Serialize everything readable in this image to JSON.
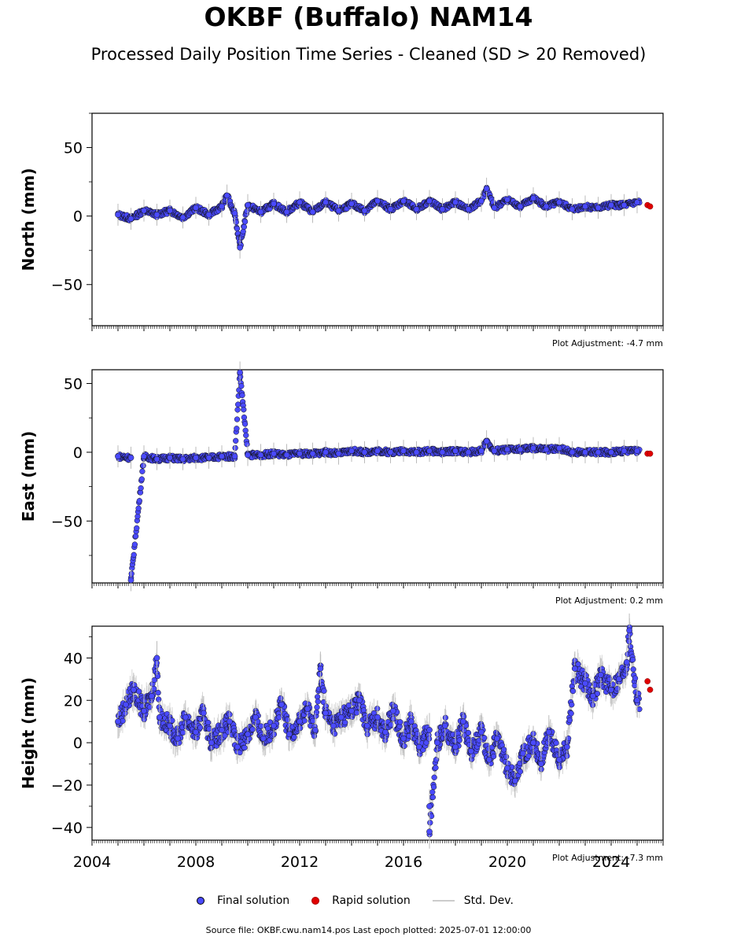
{
  "title": "OKBF (Buffalo) NAM14",
  "subtitle": "Processed Daily Position Time Series - Cleaned (SD > 20 Removed)",
  "legend": {
    "final": "Final solution",
    "rapid": "Rapid solution",
    "sd": "Std. Dev."
  },
  "footer": "Source file: OKBF.cwu.nam14.pos  Last epoch plotted: 2025-07-01 12:00:00",
  "colors": {
    "final": "#4a4aff",
    "rapid": "#e00000",
    "sd": "#bbbbbb"
  },
  "chart_data": [
    {
      "type": "scatter",
      "ylabel": "North (mm)",
      "adjustment": "Plot Adjustment: -4.7 mm",
      "xlim": [
        2004,
        2026
      ],
      "ylim": [
        -80,
        75
      ],
      "yticks": [
        -50,
        0,
        50
      ],
      "show_x_labels": false,
      "series": [
        {
          "name": "Final solution",
          "x": [
            2005.0,
            2005.5,
            2006.0,
            2006.5,
            2007.0,
            2007.5,
            2008.0,
            2008.5,
            2009.0,
            2009.5,
            2010.0,
            2010.5,
            2011.0,
            2011.5,
            2012.0,
            2012.5,
            2013.0,
            2013.5,
            2014.0,
            2014.5,
            2015.0,
            2015.5,
            2016.0,
            2016.5,
            2017.0,
            2017.5,
            2018.0,
            2018.5,
            2019.0,
            2019.5,
            2020.0,
            2020.5,
            2021.0,
            2021.5,
            2022.0,
            2022.5,
            2023.0,
            2023.5,
            2024.0,
            2024.5,
            2025.0,
            2009.2,
            2009.7,
            2019.2
          ],
          "y": [
            1,
            -2,
            4,
            1,
            4,
            -1,
            6,
            1,
            7,
            2,
            8,
            3,
            9,
            3,
            10,
            3,
            10,
            4,
            9,
            4,
            11,
            5,
            11,
            5,
            11,
            5,
            10,
            5,
            11,
            6,
            12,
            7,
            13,
            7,
            10,
            5,
            7,
            6,
            8,
            8,
            10,
            15,
            -23,
            20
          ]
        },
        {
          "name": "Rapid solution",
          "x": [
            2025.4,
            2025.5
          ],
          "y": [
            8,
            7
          ]
        }
      ]
    },
    {
      "type": "scatter",
      "ylabel": "East (mm)",
      "adjustment": "Plot Adjustment: 0.2 mm",
      "xlim": [
        2004,
        2026
      ],
      "ylim": [
        -95,
        60
      ],
      "yticks": [
        -50,
        0,
        50
      ],
      "show_x_labels": false,
      "series": [
        {
          "name": "Final solution",
          "x": [
            2005.0,
            2005.5,
            2006.0,
            2006.5,
            2007.0,
            2007.5,
            2008.0,
            2008.5,
            2009.0,
            2009.5,
            2010.0,
            2010.5,
            2011.0,
            2011.5,
            2012.0,
            2012.5,
            2013.0,
            2013.5,
            2014.0,
            2014.5,
            2015.0,
            2015.5,
            2016.0,
            2016.5,
            2017.0,
            2017.5,
            2018.0,
            2018.5,
            2019.0,
            2019.5,
            2020.0,
            2020.5,
            2021.0,
            2021.5,
            2022.0,
            2022.5,
            2023.0,
            2023.5,
            2024.0,
            2024.5,
            2025.0,
            2009.7,
            2005.5,
            2019.2
          ],
          "y": [
            -3,
            -4,
            -3,
            -5,
            -4,
            -5,
            -4,
            -4,
            -3,
            -3,
            -2,
            -2,
            -1,
            -2,
            -1,
            -1,
            0,
            -1,
            1,
            0,
            1,
            0,
            1,
            0,
            1,
            0,
            1,
            0,
            1,
            1,
            2,
            2,
            3,
            2,
            3,
            0,
            0,
            0,
            0,
            1,
            1,
            58,
            -93,
            8
          ]
        },
        {
          "name": "Rapid solution",
          "x": [
            2025.4,
            2025.5
          ],
          "y": [
            -1,
            -1
          ]
        }
      ]
    },
    {
      "type": "scatter",
      "ylabel": "Height (mm)",
      "adjustment": "Plot Adjustment: -7.3 mm",
      "xlim": [
        2004,
        2026
      ],
      "ylim": [
        -46,
        55
      ],
      "yticks": [
        -40,
        -20,
        0,
        20,
        40
      ],
      "xticks": [
        2004,
        2008,
        2012,
        2016,
        2020,
        2024
      ],
      "show_x_labels": true,
      "series": [
        {
          "name": "Final solution",
          "x": [
            2005.0,
            2005.3,
            2005.6,
            2006.0,
            2006.3,
            2006.6,
            2007.0,
            2007.3,
            2007.6,
            2008.0,
            2008.3,
            2008.6,
            2009.0,
            2009.3,
            2009.6,
            2010.0,
            2010.3,
            2010.6,
            2011.0,
            2011.3,
            2011.6,
            2012.0,
            2012.3,
            2012.6,
            2013.0,
            2013.3,
            2013.6,
            2014.0,
            2014.3,
            2014.6,
            2015.0,
            2015.3,
            2015.6,
            2016.0,
            2016.3,
            2016.6,
            2017.0,
            2017.3,
            2017.6,
            2018.0,
            2018.3,
            2018.6,
            2019.0,
            2019.3,
            2019.6,
            2020.0,
            2020.3,
            2020.6,
            2021.0,
            2021.3,
            2021.6,
            2022.0,
            2022.3,
            2022.6,
            2023.0,
            2023.3,
            2023.6,
            2024.0,
            2024.3,
            2024.6,
            2025.0,
            2017.0,
            2017.0,
            2012.8,
            2006.5,
            2024.7
          ],
          "y": [
            10,
            18,
            25,
            15,
            22,
            12,
            8,
            2,
            12,
            5,
            14,
            0,
            6,
            10,
            -2,
            4,
            12,
            2,
            8,
            18,
            4,
            10,
            16,
            6,
            14,
            8,
            12,
            15,
            20,
            8,
            12,
            5,
            15,
            2,
            10,
            -2,
            6,
            0,
            8,
            -2,
            10,
            -4,
            5,
            -8,
            2,
            -12,
            -18,
            -5,
            0,
            -10,
            5,
            -8,
            -2,
            35,
            28,
            22,
            32,
            25,
            30,
            38,
            20,
            -30,
            -42,
            35,
            40,
            53
          ]
        },
        {
          "name": "Rapid solution",
          "x": [
            2025.4,
            2025.5
          ],
          "y": [
            29,
            25
          ]
        }
      ]
    }
  ]
}
